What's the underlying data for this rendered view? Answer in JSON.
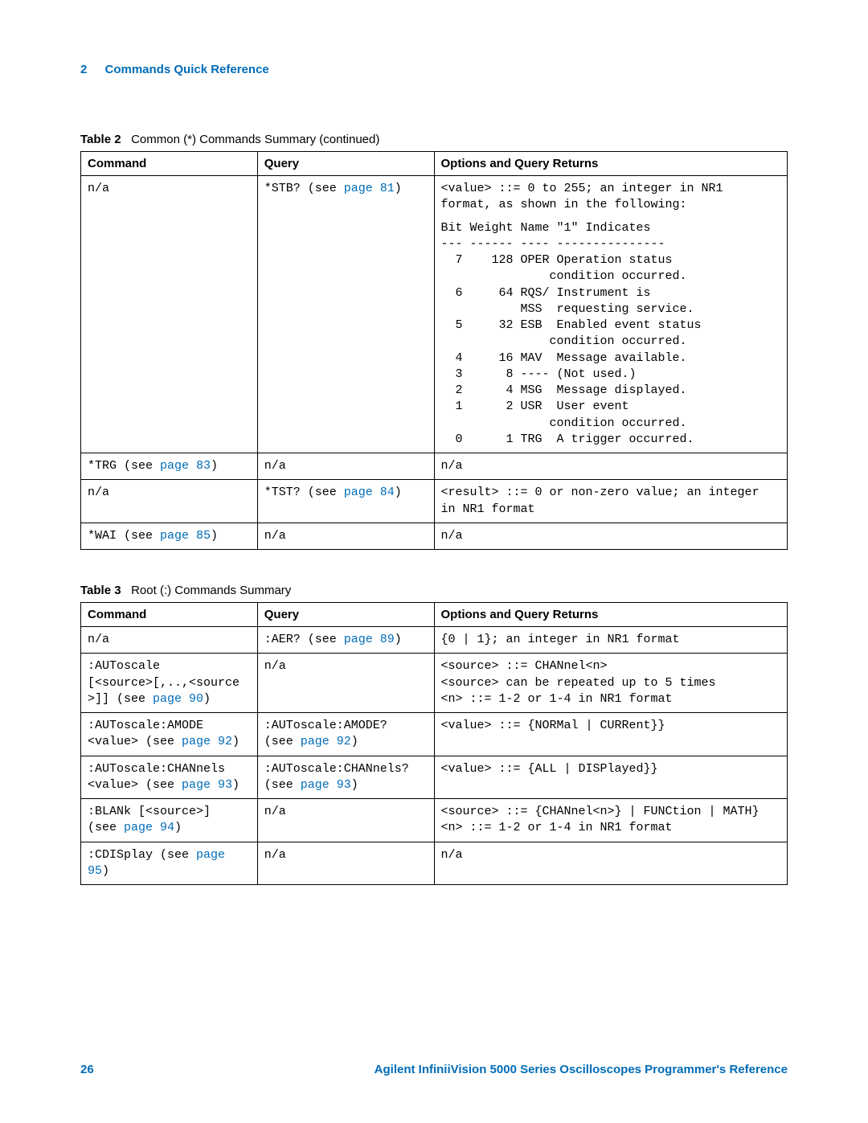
{
  "header": {
    "section_number": "2",
    "section_title": "Commands Quick Reference"
  },
  "table2": {
    "caption_label": "Table 2",
    "caption_text": "Common (*) Commands Summary (continued)",
    "headers": {
      "col1": "Command",
      "col2": "Query",
      "col3": "Options and Query Returns"
    },
    "row1": {
      "cmd": "n/a",
      "query_pre": "*STB? (see ",
      "query_link": "page 81",
      "query_post": ")",
      "opt_intro": "<value> ::= 0 to 255; an integer in NR1 format, as shown in the following:",
      "bit_header": "Bit Weight Name \"1\" Indicates",
      "bit_sep": "--- ------ ---- ---------------",
      "bit7a": "  7    128 OPER Operation status",
      "bit7b": "               condition occurred.",
      "bit6a": "  6     64 RQS/ Instrument is",
      "bit6b": "           MSS  requesting service.",
      "bit5a": "  5     32 ESB  Enabled event status",
      "bit5b": "               condition occurred.",
      "bit4": "  4     16 MAV  Message available.",
      "bit3": "  3      8 ---- (Not used.)",
      "bit2": "  2      4 MSG  Message displayed.",
      "bit1a": "  1      2 USR  User event",
      "bit1b": "               condition occurred.",
      "bit0": "  0      1 TRG  A trigger occurred."
    },
    "row2": {
      "cmd_pre": "*TRG (see ",
      "cmd_link": "page 83",
      "cmd_post": ")",
      "query": "n/a",
      "opt": "n/a"
    },
    "row3": {
      "cmd": "n/a",
      "query_pre": "*TST? (see ",
      "query_link": "page 84",
      "query_post": ")",
      "opt": "<result> ::= 0 or non-zero value; an integer in NR1 format"
    },
    "row4": {
      "cmd_pre": "*WAI (see ",
      "cmd_link": "page 85",
      "cmd_post": ")",
      "query": "n/a",
      "opt": "n/a"
    }
  },
  "table3": {
    "caption_label": "Table 3",
    "caption_text": "Root (:) Commands Summary",
    "headers": {
      "col1": "Command",
      "col2": "Query",
      "col3": "Options and Query Returns"
    },
    "r1": {
      "cmd": "n/a",
      "query_pre": ":AER? (see ",
      "query_link": "page 89",
      "query_post": ")",
      "opt": "{0 | 1}; an integer in NR1 format"
    },
    "r2": {
      "cmd_l1": ":AUToscale",
      "cmd_l2": "[<source>[,..,<source",
      "cmd_l3_pre": ">]] (see ",
      "cmd_l3_link": "page 90",
      "cmd_l3_post": ")",
      "query": "n/a",
      "opt_l1": "<source> ::= CHANnel<n>",
      "opt_l2": "<source> can be repeated up to 5 times",
      "opt_l3": "<n> ::= 1-2 or 1-4 in NR1 format"
    },
    "r3": {
      "cmd_l1": ":AUToscale:AMODE",
      "cmd_l2_pre": "<value> (see ",
      "cmd_l2_link": "page 92",
      "cmd_l2_post": ")",
      "query_l1": ":AUToscale:AMODE?",
      "query_l2_pre": "(see ",
      "query_l2_link": "page 92",
      "query_l2_post": ")",
      "opt": "<value> ::= {NORMal | CURRent}}"
    },
    "r4": {
      "cmd_l1": ":AUToscale:CHANnels",
      "cmd_l2_pre": "<value> (see ",
      "cmd_l2_link": "page 93",
      "cmd_l2_post": ")",
      "query_l1": ":AUToscale:CHANnels?",
      "query_l2_pre": "(see ",
      "query_l2_link": "page 93",
      "query_l2_post": ")",
      "opt": "<value> ::= {ALL | DISPlayed}}"
    },
    "r5": {
      "cmd_l1": ":BLANk [<source>]",
      "cmd_l2_pre": "(see ",
      "cmd_l2_link": "page 94",
      "cmd_l2_post": ")",
      "query": "n/a",
      "opt_l1": "<source> ::= {CHANnel<n>} | FUNCtion | MATH}",
      "opt_l2": "<n> ::= 1-2 or 1-4 in NR1 format"
    },
    "r6": {
      "cmd_pre": ":CDISplay (see ",
      "cmd_link": "page 95",
      "cmd_post": ")",
      "query": "n/a",
      "opt": "n/a"
    }
  },
  "footer": {
    "page_number": "26",
    "doc_title": "Agilent InfiniiVision 5000 Series Oscilloscopes Programmer's Reference"
  }
}
